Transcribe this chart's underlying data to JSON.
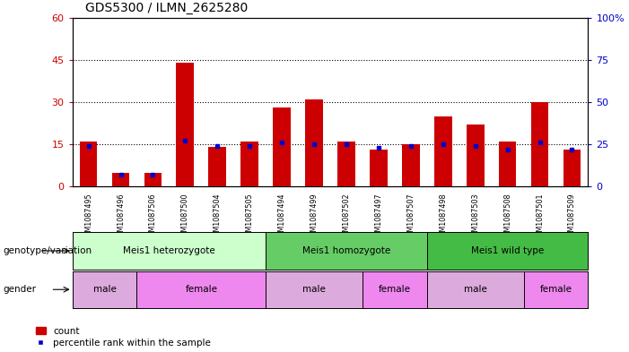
{
  "title": "GDS5300 / ILMN_2625280",
  "samples": [
    "GSM1087495",
    "GSM1087496",
    "GSM1087506",
    "GSM1087500",
    "GSM1087504",
    "GSM1087505",
    "GSM1087494",
    "GSM1087499",
    "GSM1087502",
    "GSM1087497",
    "GSM1087507",
    "GSM1087498",
    "GSM1087503",
    "GSM1087508",
    "GSM1087501",
    "GSM1087509"
  ],
  "counts": [
    16,
    5,
    5,
    44,
    14,
    16,
    28,
    31,
    16,
    13,
    15,
    25,
    22,
    16,
    30,
    13
  ],
  "percentiles": [
    24,
    7,
    7,
    27,
    24,
    24,
    26,
    25,
    25,
    23,
    24,
    25,
    24,
    22,
    26,
    22
  ],
  "ylim_left": [
    0,
    60
  ],
  "ylim_right": [
    0,
    100
  ],
  "yticks_left": [
    0,
    15,
    30,
    45,
    60
  ],
  "yticks_right": [
    0,
    25,
    50,
    75,
    100
  ],
  "bar_color": "#cc0000",
  "percentile_color": "#0000cc",
  "background_color": "#ffffff",
  "plot_bg_color": "#ffffff",
  "sample_bg_color": "#cccccc",
  "genotype_groups": [
    {
      "label": "Meis1 heterozygote",
      "start": 0,
      "end": 5,
      "color": "#ccffcc"
    },
    {
      "label": "Meis1 homozygote",
      "start": 6,
      "end": 10,
      "color": "#66cc66"
    },
    {
      "label": "Meis1 wild type",
      "start": 11,
      "end": 15,
      "color": "#44bb44"
    }
  ],
  "gender_groups": [
    {
      "label": "male",
      "start": 0,
      "end": 1,
      "color": "#ddaadd"
    },
    {
      "label": "female",
      "start": 2,
      "end": 5,
      "color": "#ee88ee"
    },
    {
      "label": "male",
      "start": 6,
      "end": 8,
      "color": "#ddaadd"
    },
    {
      "label": "female",
      "start": 9,
      "end": 10,
      "color": "#ee88ee"
    },
    {
      "label": "male",
      "start": 11,
      "end": 13,
      "color": "#ddaadd"
    },
    {
      "label": "female",
      "start": 14,
      "end": 15,
      "color": "#ee88ee"
    }
  ],
  "legend_count_label": "count",
  "legend_pct_label": "percentile rank within the sample",
  "genotype_label": "genotype/variation",
  "gender_label": "gender",
  "left_axis_color": "#cc0000",
  "right_axis_color": "#0000cc",
  "tick_fontsize": 8,
  "bar_fontsize": 6.5,
  "annot_fontsize": 7.5
}
